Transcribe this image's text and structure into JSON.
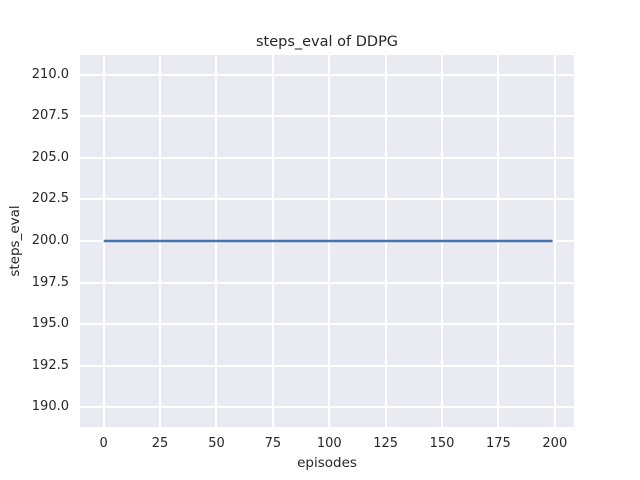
{
  "chart_data": {
    "type": "line",
    "title": "steps_eval of DDPG",
    "xlabel": "episodes",
    "ylabel": "steps_eval",
    "x_ticks": {
      "values": [
        0,
        25,
        50,
        75,
        100,
        125,
        150,
        175,
        200
      ],
      "labels": [
        "0",
        "25",
        "50",
        "75",
        "100",
        "125",
        "150",
        "175",
        "200"
      ]
    },
    "y_ticks": {
      "values": [
        190,
        192.5,
        195,
        197.5,
        200,
        202.5,
        205,
        207.5,
        210
      ],
      "labels": [
        "190.0",
        "192.5",
        "195.0",
        "197.5",
        "200.0",
        "202.5",
        "205.0",
        "207.5",
        "210.0"
      ]
    },
    "xlim": [
      -10.5,
      208.5
    ],
    "ylim": [
      188.8,
      211.2
    ],
    "grid": true,
    "legend": "none",
    "series": [
      {
        "name": "steps_eval",
        "color": "#4C72B0",
        "x": [
          0,
          199
        ],
        "y": [
          200,
          200
        ]
      }
    ],
    "style": {
      "plot_background": "#EAEAF2",
      "grid_color": "#FFFFFF",
      "text_color": "#262626",
      "figure_background": "#FFFFFF",
      "line_width": 2.4
    }
  }
}
